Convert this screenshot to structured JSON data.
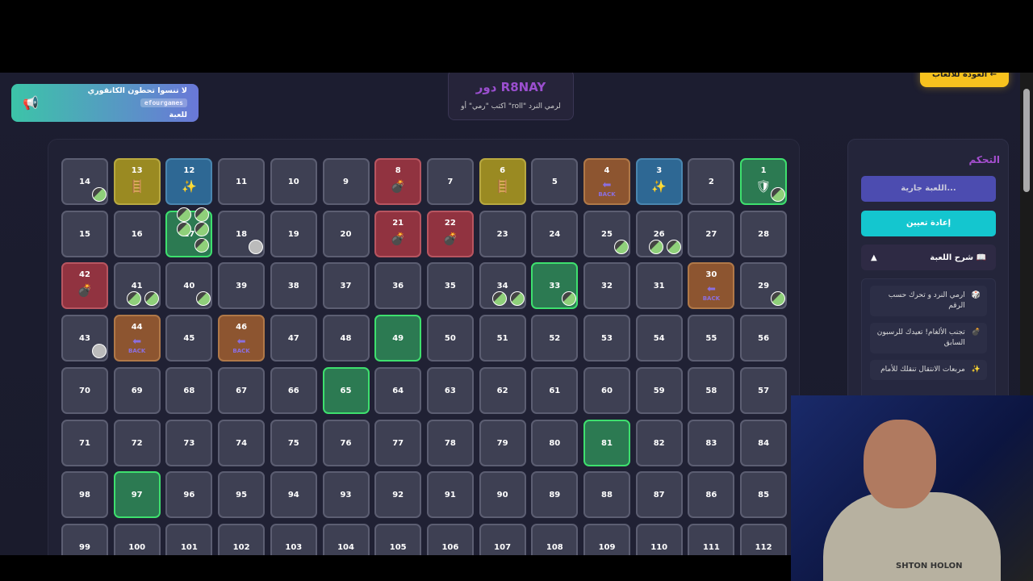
{
  "notice": {
    "icon": "megaphone-icon",
    "text": "لا تنسوا تحطون الكاتقوري",
    "code": "efourgames",
    "text2": "للعبة"
  },
  "turn": {
    "title": "دور R8NAY",
    "hint": "اكتب \"رمي\" أو \"roll\" لرمي النرد"
  },
  "back_button": "← العودة للألعاب",
  "panel": {
    "title": "التحكم",
    "status_button": "اللعبة جارية...",
    "reset_button": "إعادة تعيين",
    "rules_toggle": "📖 شرح اللعبة",
    "rules_toggle_arrow": "▲",
    "rules": [
      {
        "icon": "🎲",
        "text": "ارمي النرد و تحرك حسب الرقم"
      },
      {
        "icon": "💣",
        "text": "تجنب الألغام! تعيدك للرسبون السابق"
      },
      {
        "icon": "✨",
        "text": "مربعات الانتقال تنقلك للأمام"
      }
    ]
  },
  "board": {
    "columns": 14,
    "visible_max": 112,
    "back_label": "BACK",
    "special": {
      "1": "green",
      "3": "blue",
      "4": "orange",
      "6": "yellow",
      "8": "red",
      "12": "blue",
      "13": "yellow",
      "17": "green",
      "21": "red",
      "22": "red",
      "30": "orange",
      "33": "green",
      "42": "red",
      "44": "orange",
      "46": "orange",
      "49": "green",
      "65": "green",
      "81": "green",
      "97": "green"
    },
    "icons": {
      "blue": "✨",
      "yellow": "🪜",
      "red": "💣",
      "green_start": "🛡"
    },
    "tokens": {
      "1": 1,
      "14": 1,
      "17": 5,
      "18": 1,
      "25": 1,
      "26": 2,
      "29": 1,
      "33": 1,
      "34": 2,
      "40": 1,
      "41": 2,
      "43": 1
    },
    "colors": {
      "green": "#2c7a52",
      "red": "#913340",
      "blue": "#2e6894",
      "yellow": "#9a8a22",
      "orange": "#8d5530"
    }
  },
  "webcam": {
    "shirt_text": "SHTON HOLON"
  }
}
